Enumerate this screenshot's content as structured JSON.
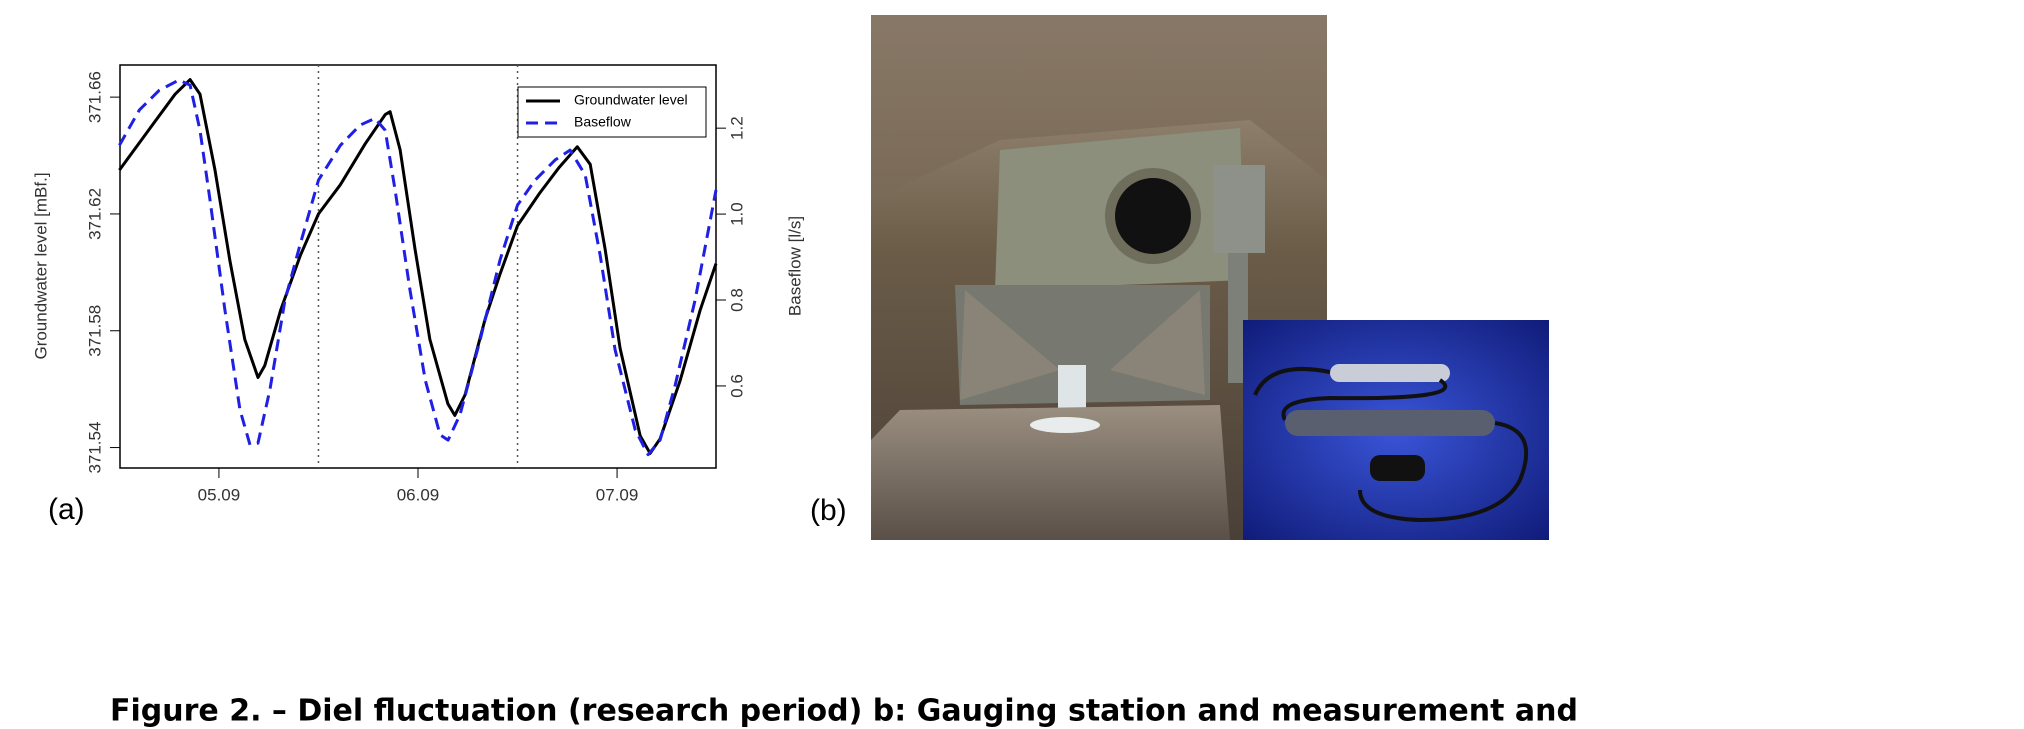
{
  "chart_data": {
    "type": "line",
    "y_label": "Groundwater level [mBf.]",
    "y2_label": "Baseflow [l/s]",
    "xlim": [
      4.503,
      7.497
    ],
    "xticks": [
      {
        "value": 5,
        "label": "05.09"
      },
      {
        "value": 6,
        "label": "06.09"
      },
      {
        "value": 7,
        "label": "07.09"
      }
    ],
    "vlines": [
      5.5,
      6.5
    ],
    "ylim": [
      371.533,
      371.671
    ],
    "yticks": [
      {
        "value": 371.54,
        "label": "371.54"
      },
      {
        "value": 371.58,
        "label": "371.58"
      },
      {
        "value": 371.62,
        "label": "371.62"
      },
      {
        "value": 371.66,
        "label": "371.66"
      }
    ],
    "y2lim": [
      0.409,
      1.347
    ],
    "y2ticks": [
      0.6,
      0.8,
      {
        "value": 1.0,
        "label": "1.0"
      },
      1.2
    ],
    "legend": "top-right",
    "series": [
      {
        "name": "Groundwater level",
        "color": "#000000",
        "linestyle": "solid",
        "x": [
          4.5,
          4.65,
          4.78,
          4.855,
          4.905,
          4.98,
          5.055,
          5.13,
          5.196,
          5.23,
          5.31,
          5.41,
          5.5,
          5.61,
          5.735,
          5.835,
          5.86,
          5.91,
          5.985,
          6.06,
          6.15,
          6.185,
          6.236,
          6.337,
          6.41,
          6.5,
          6.61,
          6.71,
          6.8,
          6.865,
          6.94,
          7.015,
          7.116,
          7.166,
          7.216,
          7.317,
          7.417,
          7.497
        ],
        "values": [
          371.635,
          371.649,
          371.661,
          371.666,
          371.661,
          371.635,
          371.604,
          371.577,
          371.564,
          371.568,
          371.587,
          371.606,
          371.62,
          371.63,
          371.644,
          371.654,
          371.655,
          371.642,
          371.608,
          371.577,
          371.555,
          371.551,
          371.558,
          371.584,
          371.599,
          371.616,
          371.627,
          371.636,
          371.643,
          371.637,
          371.608,
          371.574,
          371.544,
          371.538,
          371.543,
          371.563,
          371.587,
          371.603
        ]
      },
      {
        "name": "Baseflow",
        "color": "#1f1fe6",
        "linestyle": "dashed",
        "axis": "y2",
        "x": [
          4.5,
          4.6,
          4.7,
          4.8,
          4.855,
          4.905,
          4.955,
          5.03,
          5.106,
          5.156,
          5.196,
          5.256,
          5.332,
          5.407,
          5.5,
          5.61,
          5.709,
          5.784,
          5.835,
          5.885,
          5.96,
          6.036,
          6.111,
          6.151,
          6.211,
          6.312,
          6.412,
          6.5,
          6.588,
          6.689,
          6.764,
          6.84,
          6.915,
          6.99,
          7.091,
          7.156,
          7.216,
          7.292,
          7.392,
          7.497
        ],
        "values": [
          1.16,
          1.242,
          1.288,
          1.312,
          1.3,
          1.195,
          1.033,
          0.777,
          0.544,
          0.463,
          0.467,
          0.591,
          0.8,
          0.928,
          1.079,
          1.16,
          1.207,
          1.223,
          1.195,
          1.056,
          0.823,
          0.614,
          0.486,
          0.474,
          0.533,
          0.707,
          0.893,
          1.021,
          1.079,
          1.126,
          1.149,
          1.091,
          0.905,
          0.684,
          0.498,
          0.44,
          0.474,
          0.602,
          0.8,
          1.056
        ]
      }
    ]
  },
  "panel_labels": [
    "(a)",
    "(b)"
  ],
  "caption": "Figure 2. – Diel fluctuation (research period) b: Gauging station and measurement and"
}
